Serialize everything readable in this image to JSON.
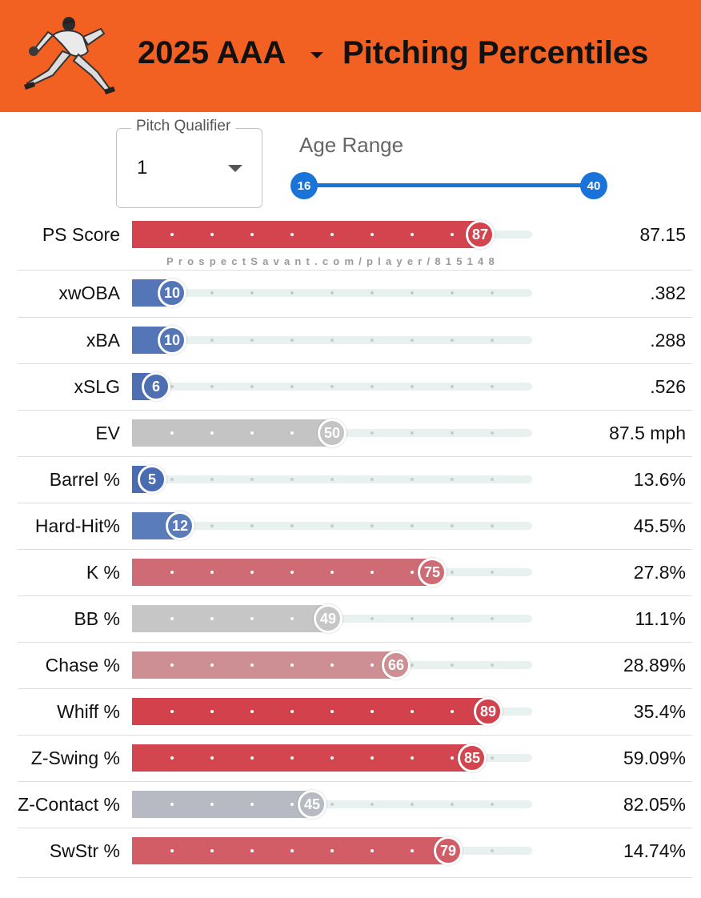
{
  "header": {
    "year_selector": "2025 AAA",
    "title": "Pitching Percentiles",
    "logo_icon": "pitcher-silhouette-icon"
  },
  "filters": {
    "pitch_qualifier": {
      "label": "Pitch Qualifier",
      "value": "1"
    },
    "age_range": {
      "label": "Age Range",
      "min": "16",
      "max": "40"
    }
  },
  "watermark": "ProspectSavant.com/player/815148",
  "colors": {
    "header_bg": "#f26122",
    "slider_blue": "#1a73d9",
    "track_bg": "#e9f0f0"
  },
  "metrics": [
    {
      "label": "PS Score",
      "percentile": 87,
      "value": "87.15",
      "color": "#d4444f"
    },
    {
      "label": "xwOBA",
      "percentile": 10,
      "value": ".382",
      "color": "#5476b8"
    },
    {
      "label": "xBA",
      "percentile": 10,
      "value": ".288",
      "color": "#5476b8"
    },
    {
      "label": "xSLG",
      "percentile": 6,
      "value": ".526",
      "color": "#4f6fb3"
    },
    {
      "label": "EV",
      "percentile": 50,
      "value": "87.5 mph",
      "color": "#c4c4c4"
    },
    {
      "label": "Barrel %",
      "percentile": 5,
      "value": "13.6%",
      "color": "#4a6cb2"
    },
    {
      "label": "Hard-Hit%",
      "percentile": 12,
      "value": "45.5%",
      "color": "#5b7cba"
    },
    {
      "label": "K %",
      "percentile": 75,
      "value": "27.8%",
      "color": "#cf6b74"
    },
    {
      "label": "BB %",
      "percentile": 49,
      "value": "11.1%",
      "color": "#c6c6c6"
    },
    {
      "label": "Chase %",
      "percentile": 66,
      "value": "28.89%",
      "color": "#cd8f94"
    },
    {
      "label": "Whiff %",
      "percentile": 89,
      "value": "35.4%",
      "color": "#d3414c"
    },
    {
      "label": "Z-Swing %",
      "percentile": 85,
      "value": "59.09%",
      "color": "#d4464f"
    },
    {
      "label": "Z-Contact %",
      "percentile": 45,
      "value": "82.05%",
      "color": "#b7bac3"
    },
    {
      "label": "SwStr %",
      "percentile": 79,
      "value": "14.74%",
      "color": "#d25d66"
    }
  ]
}
